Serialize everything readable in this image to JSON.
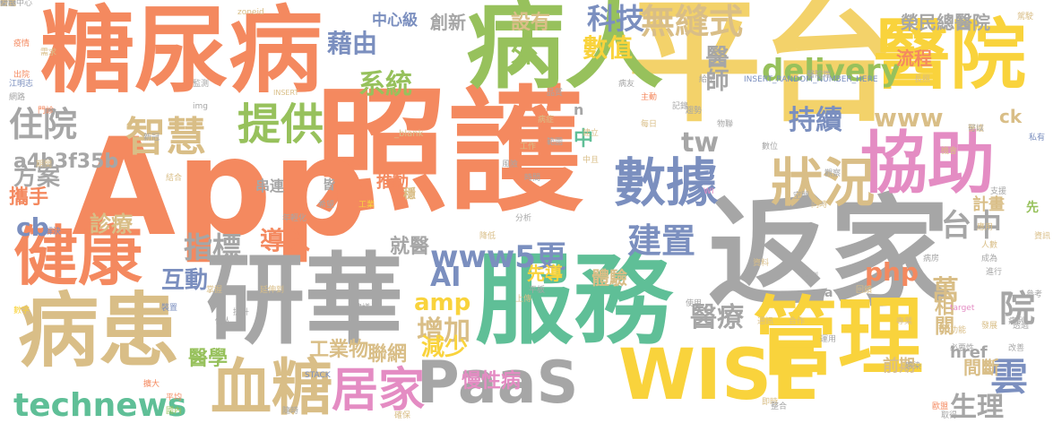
{
  "words": [
    {
      "text": "照護",
      "color": "#f4895f"
    },
    {
      "text": "App",
      "color": "#f4895f"
    },
    {
      "text": "平台",
      "color": "#f3d26a"
    },
    {
      "text": "返家",
      "color": "#a6a6a6"
    },
    {
      "text": "病人",
      "color": "#97c15c"
    },
    {
      "text": "糖尿病",
      "color": "#f4895f"
    },
    {
      "text": "研華",
      "color": "#a6a6a6"
    },
    {
      "text": "服務",
      "color": "#5fbf97"
    },
    {
      "text": "管理",
      "color": "#f9d33c"
    },
    {
      "text": "病患",
      "color": "#d9be87"
    },
    {
      "text": "醫院",
      "color": "#f9d33c"
    },
    {
      "text": "協助",
      "color": "#e48cc3"
    },
    {
      "text": "健康",
      "color": "#f4895f"
    },
    {
      "text": "WISE",
      "color": "#f9d33c"
    },
    {
      "text": "PaaS",
      "color": "#a6a6a6"
    },
    {
      "text": "血糖",
      "color": "#d9be87"
    },
    {
      "text": "數據",
      "color": "#7b8fbf"
    },
    {
      "text": "狀況",
      "color": "#d9be87"
    },
    {
      "text": "居家",
      "color": "#e48cc3"
    },
    {
      "text": "提供",
      "color": "#97c15c"
    },
    {
      "text": "智慧",
      "color": "#d9be87"
    },
    {
      "text": "technews",
      "color": "#5fbf97"
    },
    {
      "text": "無縫式",
      "color": "#d9be87"
    },
    {
      "text": "delivery",
      "color": "#97c15c"
    },
    {
      "text": "科技",
      "color": "#7b8fbf"
    },
    {
      "text": "www5更",
      "color": "#7b8fbf"
    },
    {
      "text": "建置",
      "color": "#7b8fbf"
    },
    {
      "text": "台中",
      "color": "#a6a6a6"
    },
    {
      "text": "住院",
      "color": "#a6a6a6"
    },
    {
      "text": "www",
      "color": "#d9be87"
    },
    {
      "text": "系統",
      "color": "#97c15c"
    },
    {
      "text": "藉由",
      "color": "#7b8fbf"
    },
    {
      "text": "數值",
      "color": "#f9d33c"
    },
    {
      "text": "持續",
      "color": "#7b8fbf"
    },
    {
      "text": "tw",
      "color": "#a6a6a6"
    },
    {
      "text": "指標",
      "color": "#a6a6a6"
    },
    {
      "text": "導入",
      "color": "#f4895f"
    },
    {
      "text": "雲",
      "color": "#7b8fbf"
    },
    {
      "text": "院",
      "color": "#a6a6a6"
    },
    {
      "text": "醫療",
      "color": "#a6a6a6"
    },
    {
      "text": "增加",
      "color": "#d9be87"
    },
    {
      "text": "AI",
      "color": "#7b8fbf"
    },
    {
      "text": "amp",
      "color": "#f9d33c"
    },
    {
      "text": "php",
      "color": "#f4895f"
    },
    {
      "text": "萬",
      "color": "#d9be87"
    },
    {
      "text": "減少",
      "color": "#f9d33c"
    },
    {
      "text": "互動",
      "color": "#7b8fbf"
    },
    {
      "text": "生理",
      "color": "#a6a6a6"
    },
    {
      "text": "診療",
      "color": "#d9be87"
    },
    {
      "text": "方案",
      "color": "#a6a6a6"
    },
    {
      "text": "cb",
      "color": "#7b8fbf"
    },
    {
      "text": "就醫",
      "color": "#a6a6a6"
    },
    {
      "text": "外",
      "color": "#97c15c"
    },
    {
      "text": "設有",
      "color": "#d9be87"
    },
    {
      "text": "中",
      "color": "#5fbf97"
    },
    {
      "text": "醫師",
      "color": "#a6a6a6"
    },
    {
      "text": "相關",
      "color": "#d9be87"
    },
    {
      "text": "a4b3f35b",
      "color": "#a6a6a6"
    },
    {
      "text": "攜手",
      "color": "#f4895f"
    },
    {
      "text": "慢性病",
      "color": "#e48cc3"
    },
    {
      "text": "聯網",
      "color": "#d9be87"
    },
    {
      "text": "工業物",
      "color": "#d9be87"
    },
    {
      "text": "醫學",
      "color": "#97c15c"
    },
    {
      "text": "榮民總醫院",
      "color": "#a6a6a6"
    },
    {
      "text": "中心級",
      "color": "#7b8fbf"
    },
    {
      "text": "創新",
      "color": "#a6a6a6"
    },
    {
      "text": "體驗",
      "color": "#d9be87"
    },
    {
      "text": "流程",
      "color": "#f4895f"
    },
    {
      "text": "計畫",
      "color": "#d9be87"
    },
    {
      "text": "推動",
      "color": "#f4895f"
    },
    {
      "text": "串連",
      "color": "#a6a6a6"
    },
    {
      "text": "先導",
      "color": "#f9d33c"
    },
    {
      "text": "前期",
      "color": "#d9be87"
    },
    {
      "text": "間斷",
      "color": "#d9be87"
    },
    {
      "text": "href",
      "color": "#a6a6a6"
    },
    {
      "text": "ck",
      "color": "#d9be87"
    },
    {
      "text": "n",
      "color": "#a6a6a6"
    },
    {
      "text": "_blank",
      "color": "#d9be87"
    },
    {
      "text": "INSERT_RANDOM_NUMBER_HERE",
      "color": "#7b8fbf"
    },
    {
      "text": "INSERT",
      "color": "#d9be87"
    },
    {
      "text": "STACK",
      "color": "#7b8fbf"
    },
    {
      "text": "target",
      "color": "#e48cc3"
    },
    {
      "text": "img",
      "color": "#a6a6a6"
    },
    {
      "text": "zoneid",
      "color": "#d9be87"
    },
    {
      "text": "WI",
      "color": "#e48cc3"
    },
    {
      "text": "穩",
      "color": "#d9be87"
    },
    {
      "text": "皆",
      "color": "#a6a6a6"
    },
    {
      "text": "江明志",
      "color": "#7b8fbf"
    },
    {
      "text": "先",
      "color": "#97c15c"
    },
    {
      "text": "a",
      "color": "#a6a6a6"
    },
    {
      "text": "監測",
      "color": "#a6a6a6"
    },
    {
      "text": "統計",
      "color": "#f4895f"
    },
    {
      "text": "疫情",
      "color": "#f4895f"
    },
    {
      "text": "駕駛",
      "color": "#d9be87"
    },
    {
      "text": "出院",
      "color": "#f4895f"
    },
    {
      "text": "網路",
      "color": "#a6a6a6"
    },
    {
      "text": "裝置",
      "color": "#7b8fbf"
    },
    {
      "text": "病友",
      "color": "#a6a6a6"
    },
    {
      "text": "品質",
      "color": "#a6a6a6"
    },
    {
      "text": "合作",
      "color": "#d9be87"
    },
    {
      "text": "新冠",
      "color": "#a6a6a6"
    },
    {
      "text": "同時",
      "color": "#d9be87"
    },
    {
      "text": "門診",
      "color": "#f4895f"
    },
    {
      "text": "長照",
      "color": "#d9be87"
    },
    {
      "text": "感染",
      "color": "#a6a6a6"
    },
    {
      "text": "功能",
      "color": "#d9be87"
    },
    {
      "text": "資訊",
      "color": "#d9be87"
    },
    {
      "text": "物聯",
      "color": "#a6a6a6"
    },
    {
      "text": "私有",
      "color": "#7b8fbf"
    },
    {
      "text": "參考",
      "color": "#a6a6a6"
    },
    {
      "text": "歐盟",
      "color": "#f4895f"
    },
    {
      "text": "數字",
      "color": "#f9d33c"
    },
    {
      "text": "醫院端",
      "color": "#a6a6a6"
    },
    {
      "text": "病房",
      "color": "#a6a6a6"
    },
    {
      "text": "延伸到",
      "color": "#d9be87"
    },
    {
      "text": "運用",
      "color": "#a6a6a6"
    },
    {
      "text": "建立",
      "color": "#d9be87"
    },
    {
      "text": "期間",
      "color": "#d9be87"
    },
    {
      "text": "取得",
      "color": "#a6a6a6"
    },
    {
      "text": "中且",
      "color": "#d9be87"
    },
    {
      "text": "專業",
      "color": "#d9be87"
    },
    {
      "text": "必要性",
      "color": "#a6a6a6"
    },
    {
      "text": "人數",
      "color": "#d9be87"
    },
    {
      "text": "病例",
      "color": "#a6a6a6"
    },
    {
      "text": "觀察",
      "color": "#a6a6a6"
    },
    {
      "text": "需求",
      "color": "#d9be87"
    },
    {
      "text": "解決",
      "color": "#7b8fbf"
    },
    {
      "text": "結合",
      "color": "#d9be87"
    },
    {
      "text": "支援",
      "color": "#a6a6a6"
    },
    {
      "text": "擴大",
      "color": "#f4895f"
    },
    {
      "text": "平均",
      "color": "#f4895f"
    },
    {
      "text": "國內",
      "color": "#97c15c"
    },
    {
      "text": "掌握",
      "color": "#d9be87"
    },
    {
      "text": "進行",
      "color": "#a6a6a6"
    },
    {
      "text": "隨時",
      "color": "#a6a6a6"
    },
    {
      "text": "應用",
      "color": "#d9be87"
    },
    {
      "text": "提升",
      "color": "#a6a6a6"
    },
    {
      "text": "醫護",
      "color": "#d9be87"
    },
    {
      "text": "確保",
      "color": "#d9be87"
    },
    {
      "text": "個人",
      "color": "#a6a6a6"
    },
    {
      "text": "發展",
      "color": "#d9be87"
    },
    {
      "text": "工業",
      "color": "#f9d33c"
    },
    {
      "text": "希望",
      "color": "#a6a6a6"
    },
    {
      "text": "主動",
      "color": "#f4895f"
    },
    {
      "text": "每日",
      "color": "#d9be87"
    },
    {
      "text": "記錄",
      "color": "#a6a6a6"
    },
    {
      "text": "趨勢",
      "color": "#a6a6a6"
    },
    {
      "text": "給予",
      "color": "#a6a6a6"
    },
    {
      "text": "即時",
      "color": "#d9be87"
    },
    {
      "text": "建議",
      "color": "#a6a6a6"
    },
    {
      "text": "改善",
      "color": "#a6a6a6"
    },
    {
      "text": "回饋",
      "color": "#d9be87"
    },
    {
      "text": "平板",
      "color": "#a6a6a6"
    },
    {
      "text": "上傳",
      "color": "#d9be87"
    },
    {
      "text": "整合",
      "color": "#a6a6a6"
    },
    {
      "text": "檢測",
      "color": "#a6a6a6"
    },
    {
      "text": "降低",
      "color": "#d9be87"
    },
    {
      "text": "風險",
      "color": "#a6a6a6"
    },
    {
      "text": "分析",
      "color": "#a6a6a6"
    },
    {
      "text": "機會",
      "color": "#d9be87"
    },
    {
      "text": "空間",
      "color": "#a6a6a6"
    },
    {
      "text": "透過",
      "color": "#a6a6a6"
    },
    {
      "text": "資料",
      "color": "#d9be87"
    },
    {
      "text": "使用",
      "color": "#a6a6a6"
    },
    {
      "text": "可以",
      "color": "#a6a6a6"
    },
    {
      "text": "成為",
      "color": "#a6a6a6"
    },
    {
      "text": "工作",
      "color": "#d9be87"
    },
    {
      "text": "時間",
      "color": "#a6a6a6"
    },
    {
      "text": "範圍",
      "color": "#a6a6a6"
    },
    {
      "text": "病症",
      "color": "#d9be87"
    },
    {
      "text": "年輕化",
      "color": "#a6a6a6"
    },
    {
      "text": "數位",
      "color": "#a6a6a6"
    },
    {
      "text": "通訊",
      "color": "#d9be87"
    },
    {
      "text": "架構",
      "color": "#a6a6a6"
    },
    {
      "text": "防疫",
      "color": "#a6a6a6"
    },
    {
      "text": "精準",
      "color": "#d9be87"
    },
    {
      "text": "新聞",
      "color": "#a6a6a6"
    },
    {
      "text": "醫學中心",
      "color": "#a6a6a6"
    },
    {
      "text": "實施",
      "color": "#a6a6a6"
    },
    {
      "text": "方式",
      "color": "#d9be87"
    }
  ]
}
